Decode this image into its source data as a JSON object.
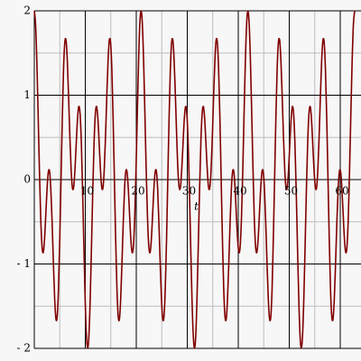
{
  "chart_data": {
    "type": "line",
    "x_label": "t",
    "x": [
      0,
      0.25,
      0.5,
      0.75,
      1,
      1.25,
      1.5,
      1.75,
      1.99,
      2.24,
      2.49,
      2.74,
      2.99,
      3.24,
      3.49,
      3.74,
      3.99,
      4.24,
      4.49,
      4.74,
      4.99,
      5.24,
      5.49,
      5.73,
      5.98,
      6.23,
      6.48,
      6.73,
      6.98,
      7.23,
      7.48,
      7.73,
      7.98,
      8.23,
      8.48,
      8.73,
      8.98,
      9.23,
      9.47,
      9.72,
      9.97,
      10.22,
      10.47,
      10.72,
      10.97,
      11.22,
      11.47,
      11.72,
      11.97,
      12.22,
      12.47,
      12.72,
      12.97,
      13.21,
      13.46,
      13.71,
      13.96,
      14.21,
      14.46,
      14.71,
      14.96,
      15.21,
      15.46,
      15.71,
      15.96,
      16.21,
      16.46,
      16.71,
      16.95,
      17.2,
      17.45,
      17.7,
      17.95,
      18.2,
      18.45,
      18.7,
      18.95,
      19.2,
      19.45,
      19.7,
      19.95,
      20.2,
      20.45,
      20.69,
      20.94,
      21.19,
      21.44,
      21.69,
      21.94,
      22.19,
      22.44,
      22.69,
      22.94,
      23.19,
      23.44,
      23.69,
      23.94,
      24.19,
      24.43,
      24.68,
      24.93,
      25.18,
      25.43,
      25.68,
      25.93,
      26.18,
      26.43,
      26.68,
      26.93,
      27.18,
      27.43,
      27.68,
      27.93,
      28.17,
      28.42,
      28.67,
      28.92,
      29.17,
      29.42,
      29.67,
      29.92,
      30.17,
      30.42,
      30.67,
      30.92,
      31.17,
      31.42,
      31.67,
      31.91,
      32.16,
      32.41,
      32.66,
      32.91,
      33.16,
      33.41,
      33.66,
      33.91,
      34.16,
      34.41,
      34.66,
      34.91,
      35.16,
      35.41,
      35.65,
      35.9,
      36.15,
      36.4,
      36.65,
      36.9,
      37.15,
      37.4,
      37.65,
      37.9,
      38.15,
      38.4,
      38.65,
      38.9,
      39.15,
      39.39,
      39.64,
      39.89,
      40.14,
      40.39,
      40.64,
      40.89,
      41.14,
      41.39,
      41.64,
      41.89,
      42.14,
      42.39,
      42.64,
      42.89,
      43.13,
      43.38,
      43.63,
      43.88,
      44.13,
      44.38,
      44.63,
      44.88,
      45.13,
      45.38,
      45.63,
      45.88,
      46.13,
      46.38,
      46.63,
      46.87,
      47.12,
      47.37,
      47.62,
      47.87,
      48.12,
      48.37,
      48.62,
      48.87,
      49.12,
      49.37,
      49.62,
      49.87,
      50.12,
      50.37,
      50.61,
      50.86,
      51.11,
      51.36,
      51.61,
      51.86,
      52.11,
      52.36,
      52.61,
      52.86,
      53.11,
      53.36,
      53.61,
      53.86,
      54.11,
      54.35,
      54.6,
      54.85,
      55.1,
      55.35,
      55.6,
      55.85,
      56.1,
      56.35,
      56.6,
      56.85,
      57.1,
      57.35,
      57.6,
      57.85,
      58.09,
      58.34,
      58.59,
      58.84,
      59.09,
      59.34,
      59.59,
      59.84,
      60.09,
      60.34,
      60.59,
      60.84,
      61.09,
      61.34,
      61.59,
      61.83,
      62.08,
      62.33,
      62.58,
      62.83
    ],
    "values": [
      2,
      1.841,
      1.401,
      0.782,
      0.123,
      -0.432,
      -0.777,
      -0.866,
      -0.723,
      -0.434,
      -0.123,
      0.084,
      0.099,
      -0.109,
      -0.5,
      -0.975,
      -1.401,
      -1.648,
      -1.623,
      -1.3,
      -0.723,
      0,
      0.723,
      1.3,
      1.623,
      1.648,
      1.401,
      0.975,
      0.5,
      0.109,
      -0.099,
      -0.084,
      0.123,
      0.434,
      0.723,
      0.866,
      0.777,
      0.432,
      -0.123,
      -0.782,
      -1.401,
      -1.841,
      -2,
      -1.841,
      -1.401,
      -0.782,
      -0.123,
      0.432,
      0.777,
      0.866,
      0.723,
      0.434,
      0.123,
      -0.084,
      -0.099,
      0.109,
      0.5,
      0.975,
      1.401,
      1.648,
      1.623,
      1.3,
      0.723,
      0,
      -0.723,
      -1.3,
      -1.623,
      -1.648,
      -1.401,
      -0.975,
      -0.5,
      -0.109,
      0.099,
      0.084,
      -0.123,
      -0.434,
      -0.723,
      -0.866,
      -0.777,
      -0.432,
      0.123,
      0.782,
      1.401,
      1.841,
      2,
      1.841,
      1.401,
      0.782,
      0.123,
      -0.432,
      -0.777,
      -0.866,
      -0.723,
      -0.434,
      -0.123,
      0.084,
      0.099,
      -0.109,
      -0.5,
      -0.975,
      -1.401,
      -1.648,
      -1.623,
      -1.3,
      -0.723,
      0,
      0.723,
      1.3,
      1.623,
      1.648,
      1.401,
      0.975,
      0.5,
      0.109,
      -0.099,
      -0.084,
      0.123,
      0.434,
      0.723,
      0.866,
      0.777,
      0.432,
      -0.123,
      -0.782,
      -1.401,
      -1.841,
      -2,
      -1.841,
      -1.401,
      -0.782,
      -0.123,
      0.432,
      0.777,
      0.866,
      0.723,
      0.434,
      0.123,
      -0.084,
      -0.099,
      0.109,
      0.5,
      0.975,
      1.401,
      1.648,
      1.623,
      1.3,
      0.723,
      0,
      -0.723,
      -1.3,
      -1.623,
      -1.648,
      -1.401,
      -0.975,
      -0.5,
      -0.109,
      0.099,
      0.084,
      -0.123,
      -0.434,
      -0.723,
      -0.866,
      -0.777,
      -0.432,
      0.123,
      0.782,
      1.401,
      1.841,
      2,
      1.841,
      1.401,
      0.782,
      0.123,
      -0.432,
      -0.777,
      -0.866,
      -0.723,
      -0.434,
      -0.123,
      0.084,
      0.099,
      -0.109,
      -0.5,
      -0.975,
      -1.401,
      -1.648,
      -1.623,
      -1.3,
      -0.723,
      0,
      0.723,
      1.3,
      1.623,
      1.648,
      1.401,
      0.975,
      0.5,
      0.109,
      -0.099,
      -0.084,
      0.123,
      0.434,
      0.723,
      0.866,
      0.777,
      0.432,
      -0.123,
      -0.782,
      -1.401,
      -1.841,
      -2,
      -1.841,
      -1.401,
      -0.782,
      -0.123,
      0.432,
      0.777,
      0.866,
      0.723,
      0.434,
      0.123,
      -0.084,
      -0.099,
      0.109,
      0.5,
      0.975,
      1.401,
      1.648,
      1.623,
      1.3,
      0.723,
      0,
      -0.723,
      -1.3,
      -1.623,
      -1.648,
      -1.401,
      -0.975,
      -0.5,
      -0.109,
      0.099,
      0.084,
      -0.123,
      -0.434,
      -0.723,
      -0.866,
      -0.777,
      -0.432,
      0.123,
      0.782,
      1.401,
      1.841,
      2
    ],
    "color": "#800000",
    "xlim": [
      0,
      62.83
    ],
    "ylim": [
      -2,
      2
    ],
    "xticks": [
      10,
      20,
      30,
      40,
      50,
      60
    ],
    "yticks": [
      {
        "value": -2,
        "label": "- 2"
      },
      {
        "value": -1,
        "label": "- 1"
      },
      0,
      1,
      2
    ],
    "minor_xticks": [
      5,
      15,
      25,
      35,
      45,
      55
    ],
    "minor_yticks": [
      -1.5,
      -0.5,
      0.5,
      1.5
    ],
    "grid": true
  }
}
